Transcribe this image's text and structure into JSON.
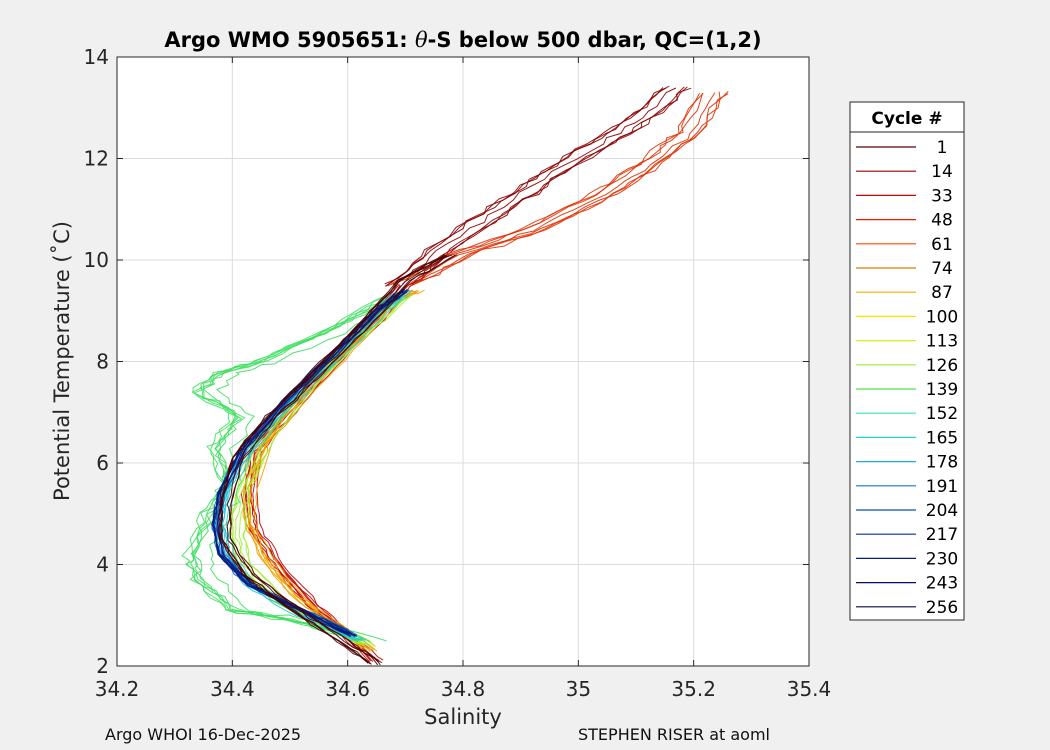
{
  "chart_data": {
    "type": "line",
    "title_prefix": "Argo WMO 5905651: ",
    "title_theta": "θ",
    "title_suffix": "-S below 500 dbar,  QC=(1,2)",
    "xlabel": "Salinity",
    "ylabel": "Potential Temperature (˚C)",
    "xlim": [
      34.2,
      35.4
    ],
    "ylim": [
      2,
      14
    ],
    "xticks": [
      34.2,
      34.4,
      34.6,
      34.8,
      35,
      35.2,
      35.4
    ],
    "xtick_labels": [
      "34.2",
      "34.4",
      "34.6",
      "34.8",
      "35",
      "35.2",
      "35.4"
    ],
    "yticks": [
      2,
      4,
      6,
      8,
      10,
      12,
      14
    ],
    "ytick_labels": [
      "2",
      "4",
      "6",
      "8",
      "10",
      "12",
      "14"
    ],
    "grid": true,
    "legend": {
      "title": "Cycle #",
      "placement": "right-outside",
      "entries": [
        {
          "label": "1",
          "color": "#5a0000"
        },
        {
          "label": "14",
          "color": "#9a0000"
        },
        {
          "label": "33",
          "color": "#d00000"
        },
        {
          "label": "48",
          "color": "#f41a00"
        },
        {
          "label": "61",
          "color": "#ff4a00"
        },
        {
          "label": "74",
          "color": "#e07800"
        },
        {
          "label": "87",
          "color": "#f0b000"
        },
        {
          "label": "100",
          "color": "#ffe000"
        },
        {
          "label": "113",
          "color": "#d6f020"
        },
        {
          "label": "126",
          "color": "#9af030"
        },
        {
          "label": "139",
          "color": "#50e050"
        },
        {
          "label": "152",
          "color": "#30e8a0"
        },
        {
          "label": "165",
          "color": "#20d8d0"
        },
        {
          "label": "178",
          "color": "#20a8e0"
        },
        {
          "label": "191",
          "color": "#1078c8"
        },
        {
          "label": "204",
          "color": "#0a50b0"
        },
        {
          "label": "217",
          "color": "#082e98"
        },
        {
          "label": "230",
          "color": "#061a80"
        },
        {
          "label": "243",
          "color": "#040e66"
        },
        {
          "label": "256",
          "color": "#060a48"
        }
      ]
    },
    "profile_groups": [
      {
        "color": "#8a0000",
        "spread": 0.03,
        "points": [
          [
            34.7,
            9.5
          ],
          [
            34.77,
            10.2
          ],
          [
            34.86,
            10.9
          ],
          [
            34.95,
            11.6
          ],
          [
            35.05,
            12.3
          ],
          [
            35.12,
            12.8
          ],
          [
            35.18,
            13.4
          ]
        ]
      },
      {
        "color": "#e03000",
        "spread": 0.03,
        "points": [
          [
            34.7,
            9.5
          ],
          [
            34.8,
            10.1
          ],
          [
            34.93,
            10.6
          ],
          [
            35.05,
            11.3
          ],
          [
            35.13,
            11.9
          ],
          [
            35.2,
            12.5
          ],
          [
            35.24,
            13.3
          ]
        ]
      },
      {
        "color": "#c00000",
        "spread": 0.012,
        "points": [
          [
            34.65,
            2.1
          ],
          [
            34.6,
            2.6
          ],
          [
            34.54,
            3.2
          ],
          [
            34.48,
            4.0
          ],
          [
            34.44,
            4.7
          ],
          [
            34.43,
            5.4
          ],
          [
            34.44,
            6.2
          ],
          [
            34.5,
            7.0
          ],
          [
            34.57,
            7.9
          ],
          [
            34.64,
            8.7
          ],
          [
            34.7,
            9.5
          ]
        ]
      },
      {
        "color": "#f0a000",
        "spread": 0.012,
        "points": [
          [
            34.64,
            2.3
          ],
          [
            34.58,
            2.8
          ],
          [
            34.51,
            3.4
          ],
          [
            34.46,
            4.1
          ],
          [
            34.43,
            4.8
          ],
          [
            34.43,
            5.5
          ],
          [
            34.46,
            6.4
          ],
          [
            34.52,
            7.3
          ],
          [
            34.6,
            8.2
          ],
          [
            34.68,
            9.2
          ],
          [
            34.72,
            9.4
          ]
        ]
      },
      {
        "color": "#a0f030",
        "spread": 0.015,
        "points": [
          [
            34.64,
            2.4
          ],
          [
            34.56,
            2.8
          ],
          [
            34.48,
            3.3
          ],
          [
            34.42,
            4.0
          ],
          [
            34.41,
            4.7
          ],
          [
            34.42,
            5.5
          ],
          [
            34.46,
            6.5
          ],
          [
            34.53,
            7.5
          ],
          [
            34.62,
            8.5
          ],
          [
            34.7,
            9.3
          ]
        ]
      },
      {
        "color": "#40e060",
        "spread": 0.035,
        "points": [
          [
            34.63,
            2.5
          ],
          [
            34.5,
            2.9
          ],
          [
            34.4,
            3.1
          ],
          [
            34.34,
            3.7
          ],
          [
            34.33,
            4.2
          ],
          [
            34.36,
            5.0
          ],
          [
            34.39,
            5.6
          ],
          [
            34.37,
            6.3
          ],
          [
            34.41,
            6.9
          ],
          [
            34.34,
            7.4
          ],
          [
            34.38,
            7.8
          ],
          [
            34.45,
            8.0
          ],
          [
            34.58,
            8.7
          ],
          [
            34.68,
            9.3
          ]
        ]
      },
      {
        "color": "#20c8d8",
        "spread": 0.012,
        "points": [
          [
            34.62,
            2.5
          ],
          [
            34.52,
            3.0
          ],
          [
            34.43,
            3.6
          ],
          [
            34.39,
            4.2
          ],
          [
            34.38,
            4.8
          ],
          [
            34.39,
            5.5
          ],
          [
            34.43,
            6.3
          ],
          [
            34.5,
            7.2
          ],
          [
            34.58,
            8.1
          ],
          [
            34.66,
            9.0
          ],
          [
            34.7,
            9.4
          ]
        ]
      },
      {
        "color": "#1060c0",
        "spread": 0.008,
        "points": [
          [
            34.61,
            2.6
          ],
          [
            34.52,
            3.1
          ],
          [
            34.43,
            3.6
          ],
          [
            34.38,
            4.2
          ],
          [
            34.37,
            4.8
          ],
          [
            34.38,
            5.4
          ],
          [
            34.42,
            6.3
          ],
          [
            34.49,
            7.2
          ],
          [
            34.57,
            8.1
          ],
          [
            34.65,
            9.0
          ],
          [
            34.7,
            9.4
          ]
        ]
      },
      {
        "color": "#061a80",
        "spread": 0.006,
        "points": [
          [
            34.61,
            2.6
          ],
          [
            34.52,
            3.1
          ],
          [
            34.43,
            3.6
          ],
          [
            34.38,
            4.2
          ],
          [
            34.37,
            4.8
          ],
          [
            34.38,
            5.4
          ],
          [
            34.42,
            6.3
          ],
          [
            34.49,
            7.2
          ],
          [
            34.57,
            8.1
          ],
          [
            34.65,
            9.0
          ],
          [
            34.7,
            9.4
          ]
        ]
      },
      {
        "color": "#4a0000",
        "spread": 0.012,
        "points": [
          [
            34.65,
            2.05
          ],
          [
            34.58,
            2.6
          ],
          [
            34.5,
            3.2
          ],
          [
            34.43,
            3.8
          ],
          [
            34.39,
            4.5
          ],
          [
            34.39,
            5.2
          ],
          [
            34.41,
            6.1
          ],
          [
            34.47,
            6.9
          ],
          [
            34.55,
            7.8
          ],
          [
            34.62,
            8.6
          ],
          [
            34.7,
            9.6
          ],
          [
            34.78,
            10.1
          ]
        ]
      }
    ],
    "footer_left": "Argo WHOI 16-Dec-2025",
    "footer_right": "STEPHEN RISER at aoml"
  }
}
